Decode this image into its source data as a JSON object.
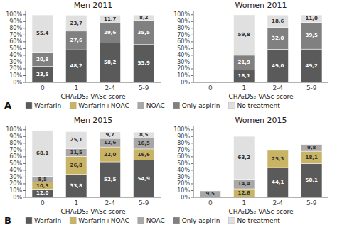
{
  "chart_data": [
    {
      "type": "bar",
      "stacked": true,
      "data_labels": true,
      "grid": false,
      "legend": "bottom",
      "title": "Men 2011",
      "x_label": "CHA₂DS₂-VASc score",
      "annotation": "A",
      "categories": [
        "0",
        "1",
        "2-4",
        "5-9"
      ],
      "ylim": [
        0,
        105
      ],
      "yticks": [
        {
          "value": 0,
          "label": "0%"
        },
        {
          "value": 10,
          "label": "10%"
        },
        {
          "value": 20,
          "label": "20%"
        },
        {
          "value": 30,
          "label": "30%"
        },
        {
          "value": 40,
          "label": "40%"
        },
        {
          "value": 50,
          "label": "50%"
        },
        {
          "value": 60,
          "label": "60%"
        },
        {
          "value": 70,
          "label": "70%"
        },
        {
          "value": 80,
          "label": "80%"
        },
        {
          "value": 90,
          "label": "90%"
        },
        {
          "value": 100,
          "label": "100%"
        }
      ],
      "series": [
        {
          "name": "Warfarin",
          "color": "#5a5a5a",
          "values": [
            23.5,
            48.2,
            58.2,
            55.9
          ],
          "value_labels": [
            "23,5",
            "48,2",
            "58,2",
            "55,9"
          ]
        },
        {
          "name": "Warfarin+NOAC",
          "color": "#c8b464",
          "values": [
            0,
            0,
            0,
            0
          ],
          "value_labels": [
            null,
            null,
            null,
            null
          ]
        },
        {
          "name": "NOAC",
          "color": "#a8a8a8",
          "values": [
            0,
            0,
            0,
            0
          ],
          "value_labels": [
            null,
            null,
            null,
            null
          ]
        },
        {
          "name": "Only aspirin",
          "color": "#808080",
          "values": [
            20.8,
            27.6,
            29.6,
            35.5
          ],
          "value_labels": [
            "20,8",
            "27,6",
            "29,6",
            "35,5"
          ]
        },
        {
          "name": "No treatment",
          "color": "#e0e0e0",
          "values": [
            55.4,
            23.7,
            11.7,
            8.2
          ],
          "value_labels": [
            "55,4",
            "23,7",
            "11,7",
            "8,2"
          ]
        }
      ]
    },
    {
      "type": "bar",
      "stacked": true,
      "data_labels": true,
      "grid": false,
      "title": "Women 2011",
      "x_label": "CHA₂DS₂-VASc score",
      "categories": [
        "0",
        "1",
        "2-4",
        "5-9"
      ],
      "ylim": [
        0,
        105
      ],
      "yticks": [
        {
          "value": 0,
          "label": "0%"
        },
        {
          "value": 10,
          "label": "10%"
        },
        {
          "value": 20,
          "label": "20%"
        },
        {
          "value": 30,
          "label": "30%"
        },
        {
          "value": 40,
          "label": "40%"
        },
        {
          "value": 50,
          "label": "50%"
        },
        {
          "value": 60,
          "label": "60%"
        },
        {
          "value": 70,
          "label": "70%"
        },
        {
          "value": 80,
          "label": "80%"
        },
        {
          "value": 90,
          "label": "90%"
        },
        {
          "value": 100,
          "label": "100%"
        }
      ],
      "series": [
        {
          "name": "Warfarin",
          "color": "#5a5a5a",
          "values": [
            0,
            18.1,
            49.0,
            49.2
          ],
          "value_labels": [
            null,
            "18,1",
            "49,0",
            "49,2"
          ]
        },
        {
          "name": "Warfarin+NOAC",
          "color": "#c8b464",
          "values": [
            0,
            0,
            0,
            0
          ],
          "value_labels": [
            null,
            null,
            null,
            null
          ]
        },
        {
          "name": "NOAC",
          "color": "#a8a8a8",
          "values": [
            0,
            0,
            0,
            0
          ],
          "value_labels": [
            null,
            null,
            null,
            null
          ]
        },
        {
          "name": "Only aspirin",
          "color": "#808080",
          "values": [
            0,
            21.9,
            32.0,
            39.5
          ],
          "value_labels": [
            null,
            "21,9",
            "32,0",
            "39,5"
          ]
        },
        {
          "name": "No treatment",
          "color": "#e0e0e0",
          "values": [
            0,
            59.8,
            18.6,
            11.0
          ],
          "value_labels": [
            null,
            "59,8",
            "18,6",
            "11,0"
          ]
        }
      ]
    },
    {
      "type": "bar",
      "stacked": true,
      "data_labels": true,
      "grid": false,
      "legend": "bottom",
      "title": "Men 2015",
      "x_label": "CHA₂DS₂-VASc score",
      "annotation": "B",
      "categories": [
        "0",
        "1",
        "2-4",
        "5-9"
      ],
      "ylim": [
        0,
        105
      ],
      "yticks": [
        {
          "value": 0,
          "label": "0%"
        },
        {
          "value": 10,
          "label": "10%"
        },
        {
          "value": 20,
          "label": "20%"
        },
        {
          "value": 30,
          "label": "30%"
        },
        {
          "value": 40,
          "label": "40%"
        },
        {
          "value": 50,
          "label": "50%"
        },
        {
          "value": 60,
          "label": "60%"
        },
        {
          "value": 70,
          "label": "70%"
        },
        {
          "value": 80,
          "label": "80%"
        },
        {
          "value": 90,
          "label": "90%"
        },
        {
          "value": 100,
          "label": "100%"
        }
      ],
      "series": [
        {
          "name": "Warfarin",
          "color": "#5a5a5a",
          "values": [
            12.0,
            33.8,
            52.5,
            54.9
          ],
          "value_labels": [
            "12,0",
            "33,8",
            "52,5",
            "54,9"
          ]
        },
        {
          "name": "Warfarin+NOAC",
          "color": "#c8b464",
          "values": [
            10.3,
            26.8,
            22.0,
            16.6
          ],
          "value_labels": [
            "10,3",
            "26,8",
            "22,0",
            "16,6"
          ]
        },
        {
          "name": "NOAC",
          "color": "#a8a8a8",
          "values": [
            8.5,
            11.5,
            12.6,
            16.5
          ],
          "value_labels": [
            "8,5",
            "11,5",
            "12,6",
            "16,5"
          ]
        },
        {
          "name": "Only aspirin",
          "color": "#808080",
          "values": [
            0,
            0,
            0,
            0
          ],
          "value_labels": [
            null,
            null,
            null,
            null
          ]
        },
        {
          "name": "No treatment",
          "color": "#e0e0e0",
          "values": [
            68.1,
            25.1,
            9.7,
            8.5
          ],
          "value_labels": [
            "68,1",
            "25,1",
            "9,7",
            "8,5"
          ]
        }
      ]
    },
    {
      "type": "bar",
      "stacked": true,
      "data_labels": true,
      "grid": false,
      "title": "Women 2015",
      "x_label": "CHA₂DS₂-VASc score",
      "categories": [
        "0",
        "1",
        "2-4",
        "5-9"
      ],
      "ylim": [
        0,
        105
      ],
      "yticks": [
        {
          "value": 0,
          "label": "0%"
        },
        {
          "value": 10,
          "label": "10%"
        },
        {
          "value": 20,
          "label": "20%"
        },
        {
          "value": 30,
          "label": "30%"
        },
        {
          "value": 40,
          "label": "40%"
        },
        {
          "value": 50,
          "label": "50%"
        },
        {
          "value": 60,
          "label": "60%"
        },
        {
          "value": 70,
          "label": "70%"
        },
        {
          "value": 80,
          "label": "80%"
        },
        {
          "value": 90,
          "label": "90%"
        },
        {
          "value": 100,
          "label": "100%"
        }
      ],
      "series": [
        {
          "name": "Warfarin",
          "color": "#5a5a5a",
          "values": [
            0,
            0,
            44.1,
            50.1
          ],
          "value_labels": [
            null,
            null,
            "44,1",
            "50,1"
          ]
        },
        {
          "name": "Warfarin+NOAC",
          "color": "#c8b464",
          "values": [
            0,
            12.6,
            25.3,
            18.1
          ],
          "value_labels": [
            null,
            "12,6",
            "25,3",
            "18,1"
          ]
        },
        {
          "name": "NOAC",
          "color": "#a8a8a8",
          "values": [
            9.5,
            14.4,
            0,
            9.8
          ],
          "value_labels": [
            "9,5",
            "14,4",
            null,
            "9,8"
          ]
        },
        {
          "name": "Only aspirin",
          "color": "#808080",
          "values": [
            0,
            0,
            0,
            0
          ],
          "value_labels": [
            null,
            null,
            null,
            null
          ]
        },
        {
          "name": "No treatment",
          "color": "#e0e0e0",
          "values": [
            0,
            63.2,
            0,
            0
          ],
          "value_labels": [
            null,
            "63,2",
            null,
            null
          ]
        }
      ]
    }
  ]
}
